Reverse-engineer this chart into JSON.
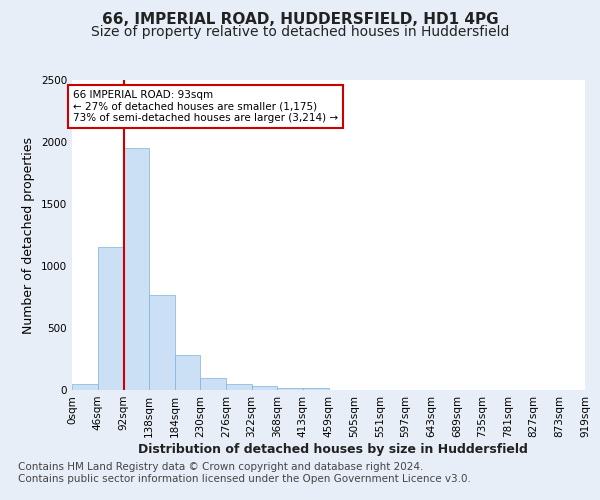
{
  "title_line1": "66, IMPERIAL ROAD, HUDDERSFIELD, HD1 4PG",
  "title_line2": "Size of property relative to detached houses in Huddersfield",
  "xlabel": "Distribution of detached houses by size in Huddersfield",
  "ylabel": "Number of detached properties",
  "footer_line1": "Contains HM Land Registry data © Crown copyright and database right 2024.",
  "footer_line2": "Contains public sector information licensed under the Open Government Licence v3.0.",
  "bin_labels": [
    "0sqm",
    "46sqm",
    "92sqm",
    "138sqm",
    "184sqm",
    "230sqm",
    "276sqm",
    "322sqm",
    "368sqm",
    "413sqm",
    "459sqm",
    "505sqm",
    "551sqm",
    "597sqm",
    "643sqm",
    "689sqm",
    "735sqm",
    "781sqm",
    "827sqm",
    "873sqm",
    "919sqm"
  ],
  "bar_values": [
    50,
    1150,
    1950,
    770,
    280,
    95,
    45,
    30,
    20,
    20,
    0,
    0,
    0,
    0,
    0,
    0,
    0,
    0,
    0,
    0
  ],
  "bar_color": "#cce0f5",
  "bar_edge_color": "#7fb3d9",
  "property_line_x": 93,
  "property_line_color": "#cc0000",
  "annotation_line1": "66 IMPERIAL ROAD: 93sqm",
  "annotation_line2": "← 27% of detached houses are smaller (1,175)",
  "annotation_line3": "73% of semi-detached houses are larger (3,214) →",
  "annotation_box_color": "#ffffff",
  "annotation_box_edge": "#cc0000",
  "ylim": [
    0,
    2500
  ],
  "xlim_min": 0,
  "xlim_max": 920,
  "bin_width": 46,
  "background_color": "#e8eef7",
  "plot_background": "#ffffff",
  "grid_color": "#ffffff",
  "title_fontsize": 11,
  "subtitle_fontsize": 10,
  "axis_label_fontsize": 9,
  "tick_fontsize": 7.5,
  "footer_fontsize": 7.5
}
